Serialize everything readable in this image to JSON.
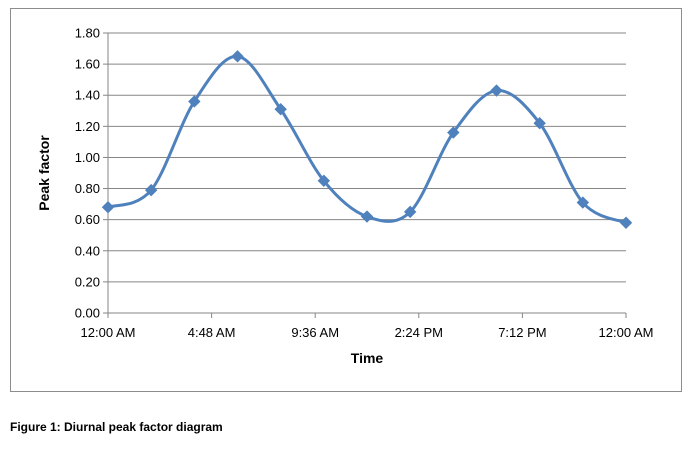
{
  "caption": "Figure 1: Diurnal peak factor diagram",
  "chart_data": {
    "type": "line",
    "title": "",
    "xlabel": "Time",
    "ylabel": "Peak factor",
    "x_tick_labels": [
      "12:00 AM",
      "4:48 AM",
      "9:36 AM",
      "2:24 PM",
      "7:12 PM",
      "12:00 AM"
    ],
    "x_tick_hours": [
      0,
      4.8,
      9.6,
      14.4,
      19.2,
      24
    ],
    "xlim": [
      0,
      24
    ],
    "y_tick_labels": [
      "0.00",
      "0.20",
      "0.40",
      "0.60",
      "0.80",
      "1.00",
      "1.20",
      "1.40",
      "1.60",
      "1.80"
    ],
    "ylim": [
      0,
      1.8
    ],
    "grid": "horizontal",
    "legend": "none",
    "series": [
      {
        "x": [
          0,
          2,
          4,
          6,
          8,
          10,
          12,
          14,
          16,
          18,
          20,
          22,
          24
        ],
        "values": [
          0.68,
          0.79,
          1.36,
          1.65,
          1.31,
          0.85,
          0.62,
          0.65,
          1.16,
          1.43,
          1.22,
          0.71,
          0.58
        ]
      }
    ],
    "colors": {
      "line": "#4F81BD",
      "marker": "#4F81BD",
      "grid": "#868686",
      "axis": "#868686"
    },
    "smooth": true,
    "marker": "diamond"
  }
}
